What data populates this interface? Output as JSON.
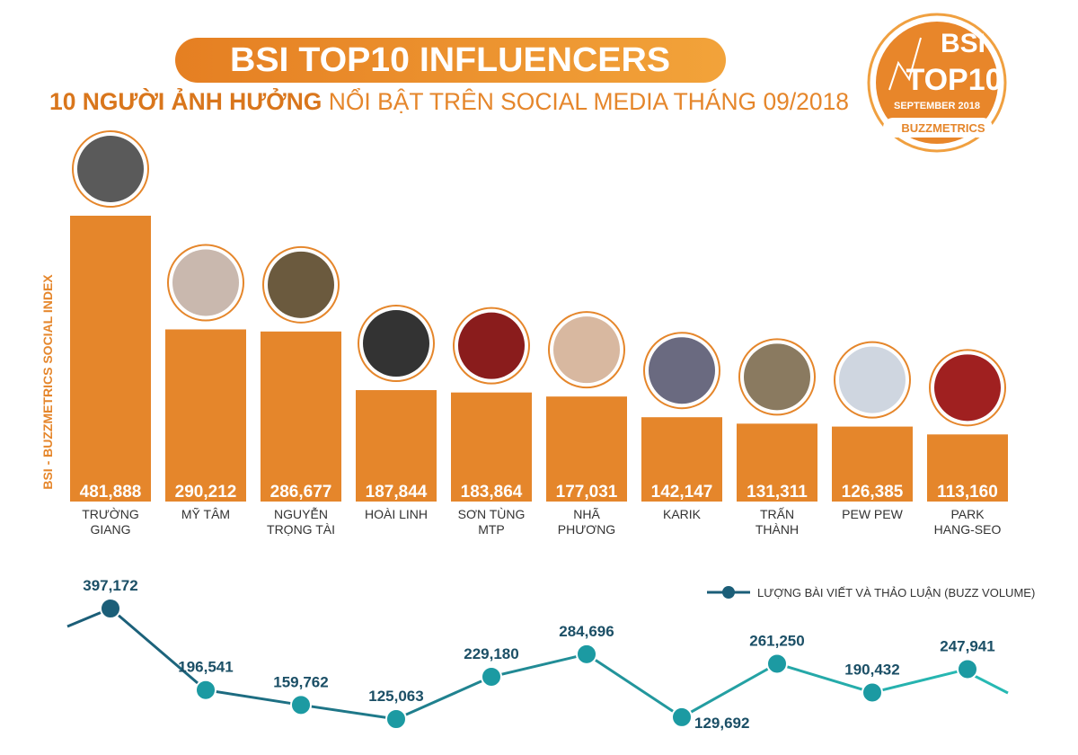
{
  "chart_data": [
    {
      "type": "bar",
      "title": "BSI TOP10 INFLUENCERS",
      "subtitle_bold": "10 NGƯỜI ẢNH HƯỞNG",
      "subtitle_rest": "NỔI BẬT TRÊN SOCIAL MEDIA THÁNG 09/2018",
      "y_label": "BSI - BUZZMETRICS SOCIAL INDEX",
      "badge": {
        "line1": "BSI",
        "line2": "TOP10",
        "line3": "SEPTEMBER 2018",
        "brand": "BUZZMETRICS"
      },
      "categories": [
        "TRƯỜNG GIANG",
        "MỸ TÂM",
        "NGUYỄN TRỌNG TÀI",
        "HOÀI LINH",
        "SƠN TÙNG MTP",
        "NHÃ PHƯƠNG",
        "KARIK",
        "TRẤN THÀNH",
        "PEW PEW",
        "PARK HANG-SEO"
      ],
      "values": [
        481888,
        290212,
        286677,
        187844,
        183864,
        177031,
        142147,
        131311,
        126385,
        113160
      ],
      "value_labels": [
        "481,888",
        "290,212",
        "286,677",
        "187,844",
        "183,864",
        "177,031",
        "142,147",
        "131,311",
        "126,385",
        "113,160"
      ],
      "color": "#e5862b"
    },
    {
      "type": "line",
      "series": [
        {
          "name": "LƯỢNG BÀI VIẾT VÀ THẢO LUẬN (BUZZ VOLUME)",
          "color": "#1c9aa2",
          "values": [
            397172,
            196541,
            159762,
            125063,
            229180,
            284696,
            129692,
            261250,
            190432,
            247941
          ],
          "value_labels": [
            "397,172",
            "196,541",
            "159,762",
            "125,063",
            "229,180",
            "284,696",
            "129,692",
            "261,250",
            "190,432",
            "247,941"
          ]
        }
      ]
    }
  ]
}
